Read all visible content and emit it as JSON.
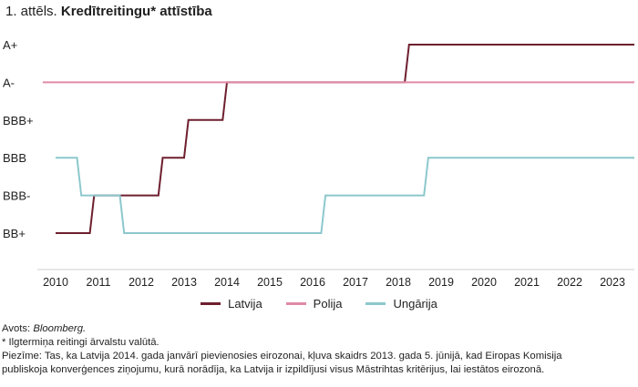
{
  "title": {
    "prefix": "1. attēls.",
    "main": "Kredītreitingu* attīstība"
  },
  "chart_data": {
    "type": "line",
    "rating_scale": [
      "BB+",
      "BBB-",
      "BBB",
      "BBB+",
      "A-",
      "A+"
    ],
    "ylim": [
      "BB+",
      "A+"
    ],
    "xlim": [
      2009.7,
      2023.55
    ],
    "x_ticks": [
      2010,
      2011,
      2012,
      2013,
      2014,
      2015,
      2016,
      2017,
      2018,
      2019,
      2020,
      2021,
      2022,
      2023
    ],
    "grid": false,
    "legend_position": "bottom",
    "series": [
      {
        "name": "Latvija",
        "color": "#6e1f2e",
        "points": [
          [
            2010.0,
            "BB+"
          ],
          [
            2010.8,
            "BB+"
          ],
          [
            2010.9,
            "BBB-"
          ],
          [
            2012.4,
            "BBB-"
          ],
          [
            2012.5,
            "BBB"
          ],
          [
            2013.0,
            "BBB"
          ],
          [
            2013.1,
            "BBB+"
          ],
          [
            2013.9,
            "BBB+"
          ],
          [
            2014.0,
            "A-"
          ],
          [
            2018.15,
            "A-"
          ],
          [
            2018.25,
            "A+"
          ],
          [
            2023.55,
            "A+"
          ]
        ]
      },
      {
        "name": "Polija",
        "color": "#e08aa6",
        "points": [
          [
            2009.7,
            "A-"
          ],
          [
            2023.55,
            "A-"
          ]
        ]
      },
      {
        "name": "Ungārija",
        "color": "#8cc8cc",
        "points": [
          [
            2010.0,
            "BBB"
          ],
          [
            2010.5,
            "BBB"
          ],
          [
            2010.6,
            "BBB-"
          ],
          [
            2011.5,
            "BBB-"
          ],
          [
            2011.6,
            "BB+"
          ],
          [
            2016.2,
            "BB+"
          ],
          [
            2016.3,
            "BBB-"
          ],
          [
            2018.6,
            "BBB-"
          ],
          [
            2018.7,
            "BBB"
          ],
          [
            2023.55,
            "BBB"
          ]
        ]
      }
    ]
  },
  "notes": {
    "source_label": "Avots:",
    "source_name": "Bloomberg.",
    "footnote": "* Ilgtermiņa reitingi ārvalstu valūtā.",
    "remark_line1": "Piezīme: Tas, ka Latvija 2014. gada janvārī pievienosies eirozonai, kļuva skaidrs 2013. gada 5. jūnijā, kad Eiropas Komisija",
    "remark_line2": "publiskoja konverģences ziņojumu, kurā norādīja, ka Latvija ir izpildījusi visus Māstrihtas kritērijus, lai iestātos eirozonā."
  }
}
